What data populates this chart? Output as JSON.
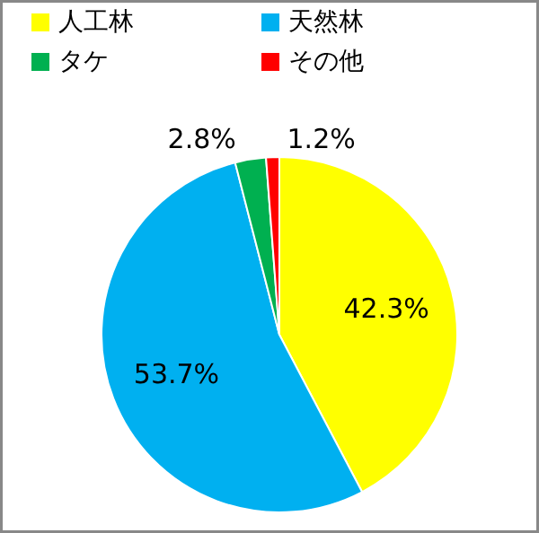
{
  "chart_data": {
    "type": "pie",
    "categories": [
      "人工林",
      "天然林",
      "タケ",
      "その他"
    ],
    "values": [
      42.3,
      53.7,
      2.8,
      1.2
    ],
    "colors": [
      "#ffff00",
      "#00b0f0",
      "#00b050",
      "#ff0000"
    ],
    "value_labels": [
      "42.3%",
      "53.7%",
      "2.8%",
      "1.2%"
    ],
    "legend": "top"
  }
}
